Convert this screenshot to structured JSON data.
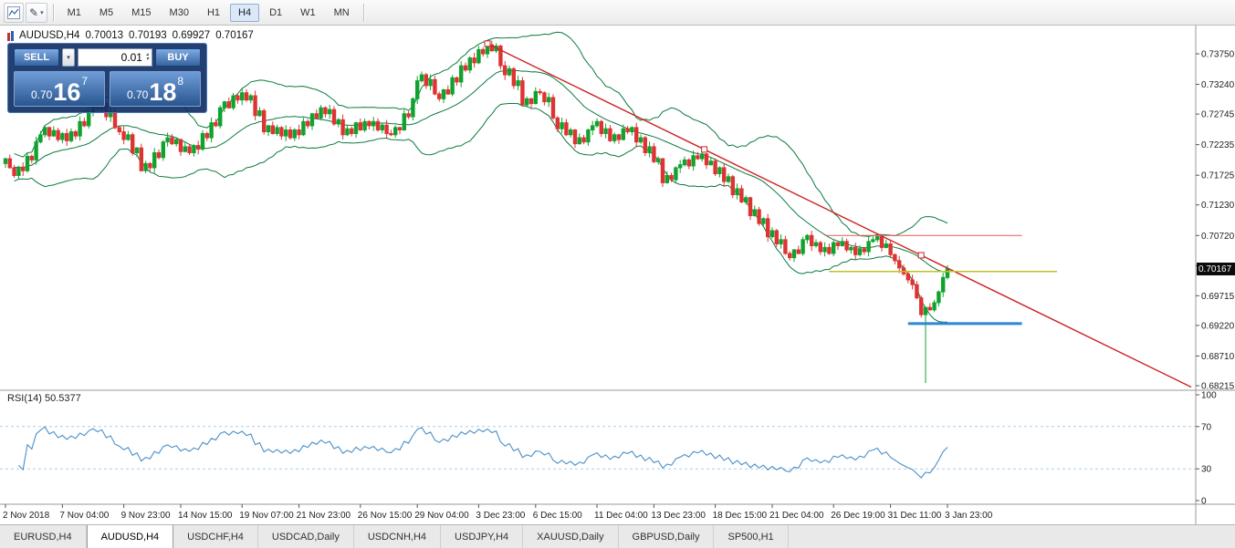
{
  "toolbar": {
    "timeframes": [
      {
        "label": "M1"
      },
      {
        "label": "M5"
      },
      {
        "label": "M15"
      },
      {
        "label": "M30"
      },
      {
        "label": "H1"
      },
      {
        "label": "H4",
        "active": true
      },
      {
        "label": "D1"
      },
      {
        "label": "W1"
      },
      {
        "label": "MN"
      }
    ]
  },
  "chart": {
    "title": {
      "symbol": "AUDUSD,H4",
      "open": "0.70013",
      "high": "0.70193",
      "low": "0.69927",
      "close": "0.70167"
    }
  },
  "trade_panel": {
    "sell_label": "SELL",
    "buy_label": "BUY",
    "volume": "0.01",
    "bid_prefix": "0.70",
    "bid_big": "16",
    "bid_sup": "7",
    "ask_prefix": "0.70",
    "ask_big": "18",
    "ask_sup": "8"
  },
  "price_axis": {
    "labels": [
      "0.73750",
      "0.73240",
      "0.72745",
      "0.72235",
      "0.71725",
      "0.71230",
      "0.70720",
      "0.70215",
      "0.69715",
      "0.69220",
      "0.68710",
      "0.68215"
    ],
    "tag": "0.70167",
    "tag_value": 0.70167
  },
  "time_axis": [
    {
      "label": "2 Nov 2018",
      "i": 0
    },
    {
      "label": "7 Nov 04:00",
      "i": 13
    },
    {
      "label": "9 Nov 23:00",
      "i": 27
    },
    {
      "label": "14 Nov 15:00",
      "i": 40
    },
    {
      "label": "19 Nov 07:00",
      "i": 54
    },
    {
      "label": "21 Nov 23:00",
      "i": 67
    },
    {
      "label": "26 Nov 15:00",
      "i": 81
    },
    {
      "label": "29 Nov 04:00",
      "i": 94
    },
    {
      "label": "3 Dec 23:00",
      "i": 108
    },
    {
      "label": "6 Dec 15:00",
      "i": 121
    },
    {
      "label": "11 Dec 04:00",
      "i": 135
    },
    {
      "label": "13 Dec 23:00",
      "i": 148
    },
    {
      "label": "18 Dec 15:00",
      "i": 162
    },
    {
      "label": "21 Dec 04:00",
      "i": 175
    },
    {
      "label": "26 Dec 19:00",
      "i": 189
    },
    {
      "label": "31 Dec 11:00",
      "i": 202
    },
    {
      "label": "3 Jan 23:00",
      "i": 215
    }
  ],
  "rsi": {
    "name": "RSI(14)",
    "value": "50.5377",
    "levels": [
      70,
      30
    ],
    "scale_labels": [
      100,
      70,
      30,
      0
    ]
  },
  "tabs": [
    {
      "label": "EURUSD,H4"
    },
    {
      "label": "AUDUSD,H4",
      "active": true
    },
    {
      "label": "USDCHF,H4"
    },
    {
      "label": "USDCAD,Daily"
    },
    {
      "label": "USDCNH,H4"
    },
    {
      "label": "USDJPY,H4"
    },
    {
      "label": "XAUUSD,Daily"
    },
    {
      "label": "GBPUSD,Daily"
    },
    {
      "label": "SP500,H1"
    }
  ],
  "colors": {
    "up": "#0fa32e",
    "down": "#df3333",
    "bands": "#0b7a3e",
    "trend": "#cc2222",
    "rsi": "#4a8fc7",
    "rsi_levels": "#a8cdec"
  },
  "chart_data": {
    "type": "candlestick",
    "title": "AUDUSD,H4",
    "ohlc_display": {
      "open": "0.70013",
      "high": "0.70193",
      "low": "0.69927",
      "close": "0.70167"
    },
    "ylim": [
      0.68215,
      0.7375
    ],
    "open_first": 0.7192,
    "closes": [
      0.72,
      0.7185,
      0.7172,
      0.7186,
      0.718,
      0.7204,
      0.7198,
      0.7228,
      0.724,
      0.7252,
      0.7238,
      0.7247,
      0.7232,
      0.7242,
      0.723,
      0.7245,
      0.7238,
      0.7262,
      0.7255,
      0.7278,
      0.729,
      0.7282,
      0.7292,
      0.727,
      0.7278,
      0.7252,
      0.7245,
      0.7232,
      0.724,
      0.721,
      0.7218,
      0.718,
      0.7192,
      0.7185,
      0.721,
      0.7202,
      0.7228,
      0.7235,
      0.7225,
      0.7232,
      0.7212,
      0.722,
      0.721,
      0.7222,
      0.7216,
      0.7242,
      0.7235,
      0.726,
      0.7255,
      0.7285,
      0.7295,
      0.7285,
      0.7305,
      0.7298,
      0.731,
      0.7298,
      0.7305,
      0.7272,
      0.728,
      0.7245,
      0.7255,
      0.7242,
      0.7252,
      0.7238,
      0.7248,
      0.7235,
      0.7248,
      0.724,
      0.7262,
      0.7255,
      0.7275,
      0.7268,
      0.7285,
      0.7275,
      0.7282,
      0.7258,
      0.7265,
      0.724,
      0.725,
      0.7242,
      0.726,
      0.7248,
      0.7262,
      0.7255,
      0.7262,
      0.7248,
      0.7256,
      0.7242,
      0.724,
      0.7252,
      0.7248,
      0.7275,
      0.727,
      0.73,
      0.733,
      0.734,
      0.7322,
      0.7332,
      0.7308,
      0.73,
      0.7315,
      0.7308,
      0.7335,
      0.7328,
      0.7355,
      0.7348,
      0.7368,
      0.736,
      0.7382,
      0.7375,
      0.739,
      0.738,
      0.7388,
      0.7355,
      0.734,
      0.735,
      0.7322,
      0.733,
      0.729,
      0.73,
      0.7292,
      0.7312,
      0.731,
      0.7295,
      0.7302,
      0.7268,
      0.725,
      0.726,
      0.724,
      0.7248,
      0.7225,
      0.7235,
      0.7228,
      0.7248,
      0.7255,
      0.7262,
      0.7242,
      0.725,
      0.723,
      0.724,
      0.7232,
      0.725,
      0.7245,
      0.7252,
      0.7228,
      0.7235,
      0.721,
      0.722,
      0.7195,
      0.72,
      0.716,
      0.7172,
      0.7165,
      0.7185,
      0.719,
      0.7198,
      0.7188,
      0.7205,
      0.72,
      0.7208,
      0.719,
      0.7196,
      0.7175,
      0.7185,
      0.7162,
      0.717,
      0.714,
      0.715,
      0.7128,
      0.7135,
      0.7105,
      0.7115,
      0.7092,
      0.71,
      0.707,
      0.708,
      0.7058,
      0.7065,
      0.7042,
      0.7035,
      0.7048,
      0.7042,
      0.7065,
      0.7072,
      0.7055,
      0.706,
      0.7045,
      0.7052,
      0.7042,
      0.706,
      0.7055,
      0.7062,
      0.7048,
      0.7052,
      0.704,
      0.705,
      0.7045,
      0.7062,
      0.7065,
      0.707,
      0.7052,
      0.7058,
      0.704,
      0.703,
      0.7018,
      0.7008,
      0.6998,
      0.699,
      0.6968,
      0.694,
      0.6952,
      0.6948,
      0.696,
      0.6978,
      0.7002,
      0.70167
    ],
    "overrides": {
      "110": {
        "high": 0.7394
      },
      "210": {
        "low": 0.6826
      }
    },
    "indicators": {
      "bollinger_period": 20,
      "bollinger_deviation": 2,
      "rsi_period": 14,
      "rsi_value": 50.5377
    },
    "objects": {
      "trendline": {
        "i1": 110,
        "p1": 0.7392,
        "i2": 209,
        "p2": 0.7039,
        "ray": true,
        "color": "#cc2222"
      },
      "hlines": [
        {
          "name": "resistance-line-red",
          "price": 0.7072,
          "i1": 187,
          "i2": 232,
          "color": "#e05c5c",
          "width": 1
        },
        {
          "name": "level-line-yellow",
          "price": 0.7012,
          "i1": 188,
          "i2": 240,
          "color": "#c0c028",
          "width": 1.5
        },
        {
          "name": "support-line-blue",
          "price": 0.6925,
          "i1": 206,
          "i2": 232,
          "color": "#2e86d8",
          "width": 3
        }
      ]
    }
  }
}
